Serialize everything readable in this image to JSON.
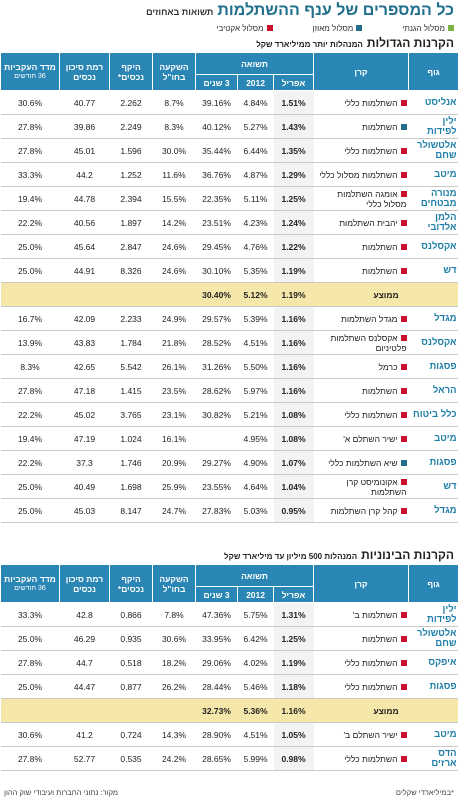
{
  "header": {
    "title": "כל המספרים של ענף ההשתלמות",
    "subtitle": "תשואות באחוזים"
  },
  "legend": [
    {
      "label": "מסלול הגנתי",
      "color": "#7cb342"
    },
    {
      "label": "מסלול מאוזן",
      "color": "#1f6e8c"
    },
    {
      "label": "מסלול אקטיבי",
      "color": "#c8102e"
    }
  ],
  "columns": {
    "company": "גוף",
    "fund": "קרן",
    "returns": "תשואה",
    "april": "אפריל",
    "ytd": "2012",
    "y3": "3 שנים",
    "abroad": "השקעה בחו\"ל",
    "assets": "היקף נכסים*",
    "risk": "רמת סיכון נכסים",
    "consistency": "מדד העקביות",
    "consistency_sub": "36 חודשים"
  },
  "sections": [
    {
      "title": "הקרנות הגדולות",
      "subtitle": "המנהלות יותר ממיליארד שקל",
      "rows": [
        [
          "אנליסט",
          "השתלמות כללי",
          "#c8102e",
          "1.51%",
          "4.84%",
          "39.16%",
          "8.7%",
          "2.262",
          "40.77",
          "30.6%"
        ],
        [
          "ילין לפידות",
          "השתלמות",
          "#1f6e8c",
          "1.43%",
          "5.27%",
          "40.12%",
          "8.3%",
          "2.249",
          "39.86",
          "27.8%"
        ],
        [
          "אלטשולר שחם",
          "השתלמות כללי",
          "#c8102e",
          "1.35%",
          "6.44%",
          "35.44%",
          "30.0%",
          "1.596",
          "45.01",
          "27.8%"
        ],
        [
          "מיטב",
          "השתלמות מסלול כללי",
          "#c8102e",
          "1.29%",
          "4.87%",
          "36.76%",
          "11.6%",
          "1.252",
          "44.2",
          "33.3%"
        ],
        [
          "מנורה מבטחים",
          "אומגה השתלמות מסלול כללי",
          "#c8102e",
          "1.25%",
          "5.11%",
          "22.35%",
          "15.5%",
          "2.394",
          "44.78",
          "19.4%"
        ],
        [
          "הלמן אלדובי",
          "יהבית השתלמות",
          "#c8102e",
          "1.24%",
          "4.23%",
          "23.51%",
          "14.2%",
          "1.897",
          "40.56",
          "22.2%"
        ],
        [
          "אקסלנס",
          "השתלמות",
          "#c8102e",
          "1.22%",
          "4.76%",
          "29.45%",
          "24.6%",
          "2.847",
          "45.64",
          "25.0%"
        ],
        [
          "דש",
          "השתלמות",
          "#c8102e",
          "1.19%",
          "5.35%",
          "30.10%",
          "24.6%",
          "8.326",
          "44.91",
          "25.0%"
        ],
        {
          "average": "ממוצע",
          "values": [
            "1.19%",
            "5.12%",
            "30.40%"
          ]
        },
        [
          "מגדל",
          "מגדל השתלמות",
          "#c8102e",
          "1.16%",
          "5.39%",
          "29.57%",
          "24.9%",
          "2.233",
          "42.09",
          "16.7%"
        ],
        [
          "אקסלנס",
          "אקסלנס השתלמות פלטיניום",
          "#c8102e",
          "1.16%",
          "4.51%",
          "28.52%",
          "21.8%",
          "1.784",
          "43.83",
          "13.9%"
        ],
        [
          "פסגות",
          "כרמל",
          "#c8102e",
          "1.16%",
          "5.50%",
          "31.26%",
          "26.1%",
          "5.542",
          "42.65",
          "8.3%"
        ],
        [
          "הראל",
          "השתלמות",
          "#c8102e",
          "1.16%",
          "5.97%",
          "28.62%",
          "23.5%",
          "1.415",
          "47.18",
          "27.8%"
        ],
        [
          "כלל ביטוח",
          "השתלמות כללי",
          "#c8102e",
          "1.08%",
          "5.21%",
          "30.82%",
          "23.1%",
          "3.765",
          "45.02",
          "22.2%"
        ],
        [
          "מיטב",
          "ישיר השתלם א'",
          "#c8102e",
          "1.08%",
          "4.95%",
          null,
          "16.1%",
          "1.024",
          "47.19",
          "19.4%"
        ],
        [
          "פסגות",
          "שיא השתלמות כללי",
          "#1f6e8c",
          "1.07%",
          "4.90%",
          "29.27%",
          "20.9%",
          "1.746",
          "37.3",
          "22.2%"
        ],
        [
          "דש",
          "אקונומיסט קרן השתלמות",
          "#c8102e",
          "1.04%",
          "4.64%",
          "23.55%",
          "25.9%",
          "1.698",
          "40.49",
          "25.0%"
        ],
        [
          "מגדל",
          "קהל קרן השתלמות",
          "#c8102e",
          "0.95%",
          "5.03%",
          "27.83%",
          "24.7%",
          "8.147",
          "45.03",
          "25.0%"
        ]
      ]
    },
    {
      "title": "הקרנות הבינוניות",
      "subtitle": "המנהלות 500 מיליון עד מיליארד שקל",
      "rows": [
        [
          "ילין לפידות",
          "השתלמות ב'",
          "#c8102e",
          "1.31%",
          "5.75%",
          "47.36%",
          "7.8%",
          "0.866",
          "42.8",
          "33.3%"
        ],
        [
          "אלטשולר שחם",
          "השתלמות",
          "#c8102e",
          "1.25%",
          "6.42%",
          "33.95%",
          "30.6%",
          "0.935",
          "46.29",
          "25.0%"
        ],
        [
          "איפקס",
          "השתלמות כללי",
          "#c8102e",
          "1.19%",
          "4.02%",
          "29.06%",
          "18.2%",
          "0.518",
          "44.7",
          "27.8%"
        ],
        [
          "פסגות",
          "השתלמות כללי",
          "#c8102e",
          "1.18%",
          "5.46%",
          "28.44%",
          "26.2%",
          "0.877",
          "44.47",
          "25.0%"
        ],
        {
          "average": "ממוצע",
          "values": [
            "1.16%",
            "5.36%",
            "32.73%"
          ]
        },
        [
          "מיטב",
          "ישיר השתלם ב'",
          "#c8102e",
          "1.05%",
          "4.51%",
          "28.90%",
          "14.3%",
          "0.724",
          "41.2",
          "30.6%"
        ],
        [
          "הדס ארזים",
          "השתלמות כללי",
          "#c8102e",
          "0.98%",
          "5.99%",
          "28.65%",
          "24.2%",
          "0.535",
          "52.77",
          "27.8%"
        ]
      ]
    }
  ],
  "footer": {
    "note": "*במיליארדי שקלים",
    "source": "מקור: נתוני החברות ועיבודי שוק ההון"
  }
}
